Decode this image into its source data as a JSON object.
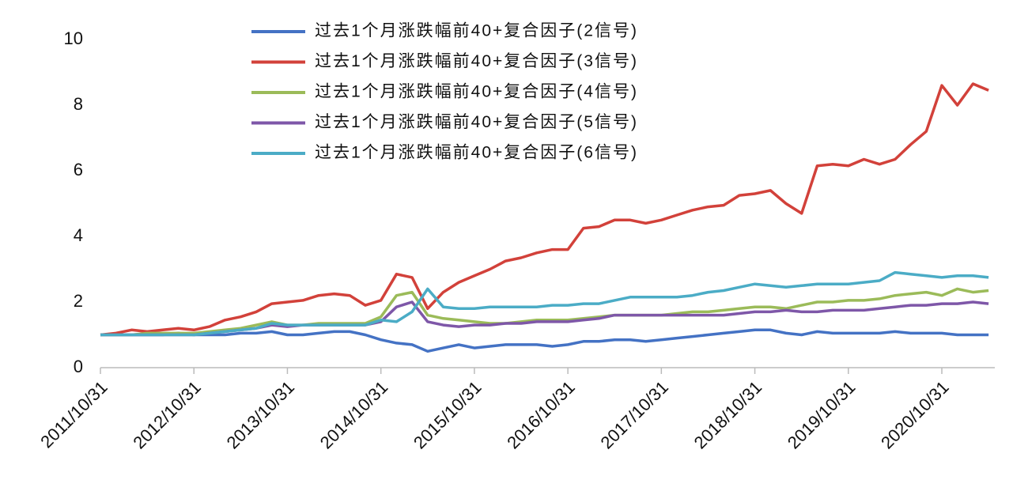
{
  "chart_data": {
    "type": "line",
    "categories": [
      "2011/10/31",
      null,
      null,
      null,
      null,
      null,
      "2012/10/31",
      null,
      null,
      null,
      null,
      null,
      "2013/10/31",
      null,
      null,
      null,
      null,
      null,
      "2014/10/31",
      null,
      null,
      null,
      null,
      null,
      "2015/10/31",
      null,
      null,
      null,
      null,
      null,
      "2016/10/31",
      null,
      null,
      null,
      null,
      null,
      "2017/10/31",
      null,
      null,
      null,
      null,
      null,
      "2018/10/31",
      null,
      null,
      null,
      null,
      null,
      "2019/10/31",
      null,
      null,
      null,
      null,
      null,
      "2020/10/31",
      null,
      null,
      null
    ],
    "ylim": [
      0,
      10
    ],
    "yticks": [
      0,
      2,
      4,
      6,
      8,
      10
    ],
    "series": [
      {
        "name": "过去1个月涨跌幅前40+复合因子(2信号)",
        "color": "#4472c4",
        "values": [
          1.0,
          1.0,
          1.0,
          1.0,
          1.0,
          1.05,
          1.0,
          1.0,
          1.0,
          1.05,
          1.05,
          1.1,
          1.0,
          1.0,
          1.05,
          1.1,
          1.1,
          1.0,
          0.85,
          0.75,
          0.7,
          0.5,
          0.6,
          0.7,
          0.6,
          0.65,
          0.7,
          0.7,
          0.7,
          0.65,
          0.7,
          0.8,
          0.8,
          0.85,
          0.85,
          0.8,
          0.85,
          0.9,
          0.95,
          1.0,
          1.05,
          1.1,
          1.15,
          1.15,
          1.05,
          1.0,
          1.1,
          1.05,
          1.05,
          1.05,
          1.05,
          1.1,
          1.05,
          1.05,
          1.05,
          1.0,
          1.0,
          1.0
        ]
      },
      {
        "name": "过去1个月涨跌幅前40+复合因子(3信号)",
        "color": "#d2413a",
        "values": [
          1.0,
          1.05,
          1.15,
          1.1,
          1.15,
          1.2,
          1.15,
          1.25,
          1.45,
          1.55,
          1.7,
          1.95,
          2.0,
          2.05,
          2.2,
          2.25,
          2.2,
          1.9,
          2.05,
          2.85,
          2.75,
          1.8,
          2.3,
          2.6,
          2.8,
          3.0,
          3.25,
          3.35,
          3.5,
          3.6,
          3.6,
          4.25,
          4.3,
          4.5,
          4.5,
          4.4,
          4.5,
          4.65,
          4.8,
          4.9,
          4.95,
          5.25,
          5.3,
          5.4,
          5.0,
          4.7,
          6.15,
          6.2,
          6.15,
          6.35,
          6.2,
          6.35,
          6.8,
          7.2,
          8.6,
          8.0,
          8.65,
          8.45
        ]
      },
      {
        "name": "过去1个月涨跌幅前40+复合因子(4信号)",
        "color": "#9bbb59",
        "values": [
          1.0,
          1.0,
          1.0,
          1.05,
          1.05,
          1.05,
          1.05,
          1.1,
          1.15,
          1.2,
          1.3,
          1.4,
          1.3,
          1.3,
          1.35,
          1.35,
          1.35,
          1.35,
          1.55,
          2.2,
          2.3,
          1.6,
          1.5,
          1.45,
          1.4,
          1.35,
          1.35,
          1.4,
          1.45,
          1.45,
          1.45,
          1.5,
          1.55,
          1.6,
          1.6,
          1.6,
          1.6,
          1.65,
          1.7,
          1.7,
          1.75,
          1.8,
          1.85,
          1.85,
          1.8,
          1.9,
          2.0,
          2.0,
          2.05,
          2.05,
          2.1,
          2.2,
          2.25,
          2.3,
          2.2,
          2.4,
          2.3,
          2.35
        ]
      },
      {
        "name": "过去1个月涨跌幅前40+复合因子(5信号)",
        "color": "#7e57a8",
        "values": [
          1.0,
          1.0,
          1.0,
          1.0,
          1.0,
          1.0,
          1.0,
          1.05,
          1.1,
          1.15,
          1.2,
          1.3,
          1.25,
          1.3,
          1.3,
          1.3,
          1.3,
          1.3,
          1.4,
          1.85,
          2.0,
          1.4,
          1.3,
          1.25,
          1.3,
          1.3,
          1.35,
          1.35,
          1.4,
          1.4,
          1.4,
          1.45,
          1.5,
          1.6,
          1.6,
          1.6,
          1.6,
          1.6,
          1.6,
          1.6,
          1.6,
          1.65,
          1.7,
          1.7,
          1.75,
          1.7,
          1.7,
          1.75,
          1.75,
          1.75,
          1.8,
          1.85,
          1.9,
          1.9,
          1.95,
          1.95,
          2.0,
          1.95
        ]
      },
      {
        "name": "过去1个月涨跌幅前40+复合因子(6信号)",
        "color": "#4bacc6",
        "values": [
          1.0,
          1.0,
          1.0,
          1.0,
          1.0,
          1.0,
          1.0,
          1.05,
          1.1,
          1.15,
          1.2,
          1.35,
          1.3,
          1.3,
          1.3,
          1.3,
          1.3,
          1.3,
          1.45,
          1.4,
          1.7,
          2.4,
          1.85,
          1.8,
          1.8,
          1.85,
          1.85,
          1.85,
          1.85,
          1.9,
          1.9,
          1.95,
          1.95,
          2.05,
          2.15,
          2.15,
          2.15,
          2.15,
          2.2,
          2.3,
          2.35,
          2.45,
          2.55,
          2.5,
          2.45,
          2.5,
          2.55,
          2.55,
          2.55,
          2.6,
          2.65,
          2.9,
          2.85,
          2.8,
          2.75,
          2.8,
          2.8,
          2.75
        ]
      }
    ]
  }
}
